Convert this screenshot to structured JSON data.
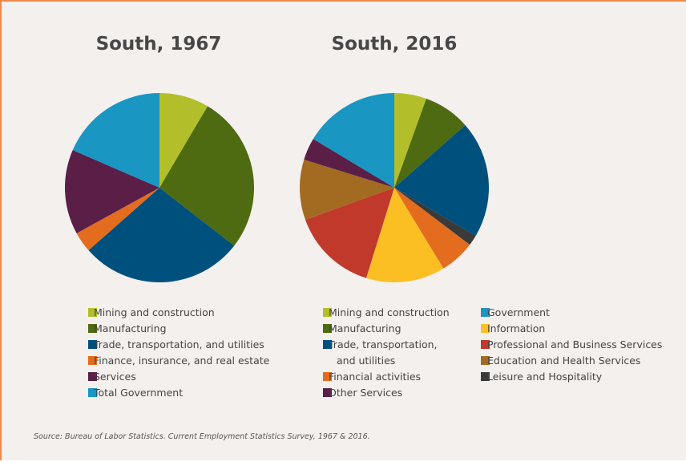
{
  "chart_data": [
    {
      "type": "pie",
      "title": "South, 1967",
      "categories": [
        "Mining and construction",
        "Manufacturing",
        "Trade, transportation, and utilities",
        "Finance, insurance, and real estate",
        "Services",
        "Total Government"
      ],
      "values": [
        8.5,
        27,
        28,
        3.5,
        14.5,
        18.5
      ],
      "colors": [
        "#b3bf2a",
        "#4e6b12",
        "#00507e",
        "#e36c1e",
        "#5a1e47",
        "#1a96c3"
      ]
    },
    {
      "type": "pie",
      "title": "South, 2016",
      "categories": [
        "Mining and construction",
        "Manufacturing",
        "Trade, transportation, and utilities",
        "Leisure and Hospitality",
        "Financial activities",
        "Information",
        "Professional and Business Services",
        "Education and Health Services",
        "Other Services",
        "Government"
      ],
      "values": [
        5.5,
        8,
        20,
        1.8,
        6,
        13.5,
        14.7,
        10.3,
        3.8,
        16.4
      ],
      "colors": [
        "#b3bf2a",
        "#4e6b12",
        "#00507e",
        "#3a3a3a",
        "#e36c1e",
        "#fbbf24",
        "#c0392b",
        "#a36a22",
        "#5a1e47",
        "#1a96c3"
      ]
    }
  ],
  "source": "Source: Bureau of Labor Statistics. Current Employment Statistics Survey, 1967 & 2016."
}
